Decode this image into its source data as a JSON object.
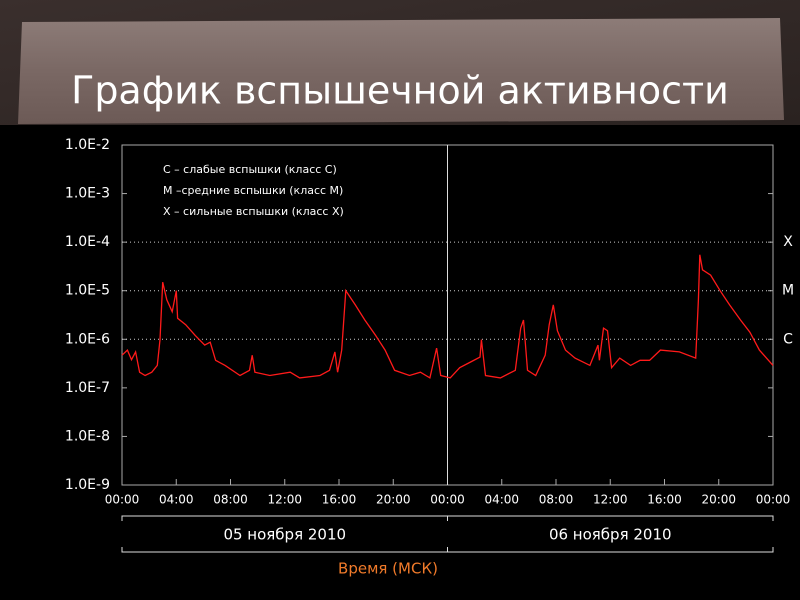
{
  "chart_data": {
    "type": "line",
    "title": "График вспышечной активности",
    "log_y": true,
    "color": "#ff1a1a",
    "ylim": [
      1e-09,
      0.01
    ],
    "yticks": [
      {
        "value": 0.01,
        "label": "1.0E-2"
      },
      {
        "value": 0.001,
        "label": "1.0E-3"
      },
      {
        "value": 0.0001,
        "label": "1.0E-4"
      },
      {
        "value": 1e-05,
        "label": "1.0E-5"
      },
      {
        "value": 1e-06,
        "label": "1.0E-6"
      },
      {
        "value": 1e-07,
        "label": "1.0E-7"
      },
      {
        "value": 1e-08,
        "label": "1.0E-8"
      },
      {
        "value": 1e-09,
        "label": "1.0E-9"
      }
    ],
    "xlim": [
      0,
      48
    ],
    "xticks": [
      {
        "value": 0,
        "label": "00:00"
      },
      {
        "value": 4,
        "label": "04:00"
      },
      {
        "value": 8,
        "label": "08:00"
      },
      {
        "value": 12,
        "label": "12:00"
      },
      {
        "value": 16,
        "label": "16:00"
      },
      {
        "value": 20,
        "label": "20:00"
      },
      {
        "value": 24,
        "label": "00:00"
      },
      {
        "value": 28,
        "label": "04:00"
      },
      {
        "value": 32,
        "label": "08:00"
      },
      {
        "value": 36,
        "label": "12:00"
      },
      {
        "value": 40,
        "label": "16:00"
      },
      {
        "value": 44,
        "label": "20:00"
      },
      {
        "value": 48,
        "label": "00:00"
      }
    ],
    "class_levels": [
      {
        "value": 0.0001,
        "label": "X"
      },
      {
        "value": 1e-05,
        "label": "M"
      },
      {
        "value": 1e-06,
        "label": "C"
      }
    ],
    "legend_text": [
      "C – слабые вспышки (класс C)",
      "M –средние вспышки (класс M)",
      "X – сильные вспышки (класс X)"
    ],
    "days": [
      {
        "label": "05 ноября 2010",
        "range": [
          0,
          24
        ]
      },
      {
        "label": "06 ноября 2010",
        "range": [
          24,
          48
        ]
      }
    ],
    "x_label": "Время (МСК)",
    "x": [
      0,
      0.4,
      0.7,
      1.0,
      1.3,
      1.7,
      2.2,
      2.6,
      2.8,
      3.0,
      3.3,
      3.7,
      4.0,
      4.1,
      4.7,
      5.4,
      6.1,
      6.5,
      6.9,
      7.6,
      8.7,
      9.4,
      9.6,
      9.8,
      10.9,
      12.4,
      13.1,
      14.6,
      15.3,
      15.7,
      15.9,
      16.2,
      16.5,
      17.2,
      17.9,
      18.7,
      19.4,
      20.1,
      21.2,
      22.0,
      22.7,
      23.2,
      23.5,
      24.2,
      24.9,
      25.7,
      26.4,
      26.5,
      26.8,
      27.9,
      29.0,
      29.4,
      29.6,
      29.9,
      30.5,
      31.2,
      31.5,
      31.8,
      32.1,
      32.7,
      33.4,
      34.5,
      35.1,
      35.2,
      35.5,
      35.8,
      36.1,
      36.7,
      37.5,
      38.2,
      38.9,
      39.7,
      41.1,
      42.3,
      42.5,
      42.6,
      42.8,
      43.4,
      44.1,
      44.8,
      45.6,
      46.3,
      47.0,
      48.0
    ],
    "values": [
      4.7e-07,
      6e-07,
      3.8e-07,
      5.5e-07,
      2.1e-07,
      1.8e-07,
      2.1e-07,
      2.9e-07,
      9.8e-07,
      1.5e-05,
      6.5e-06,
      3.7e-06,
      1e-05,
      2.7e-06,
      2e-06,
      1.2e-06,
      7.6e-07,
      8.7e-07,
      3.7e-07,
      2.9e-07,
      1.8e-07,
      2.3e-07,
      4.7e-07,
      2.1e-07,
      1.8e-07,
      2.1e-07,
      1.6e-07,
      1.8e-07,
      2.3e-07,
      5.5e-07,
      2.1e-07,
      6e-07,
      1e-05,
      5.1e-06,
      2.5e-06,
      1.2e-06,
      6e-07,
      2.3e-07,
      1.8e-07,
      2.1e-07,
      1.6e-07,
      6.6e-07,
      1.8e-07,
      1.6e-07,
      2.6e-07,
      3.4e-07,
      4.3e-07,
      9.8e-07,
      1.8e-07,
      1.6e-07,
      2.3e-07,
      1.7e-06,
      2.5e-06,
      2.3e-07,
      1.8e-07,
      4.7e-07,
      2e-06,
      5.1e-06,
      1.5e-06,
      6e-07,
      4.1e-07,
      2.9e-07,
      7.6e-07,
      3.7e-07,
      1.7e-06,
      1.5e-06,
      2.6e-07,
      4.1e-07,
      2.9e-07,
      3.7e-07,
      3.7e-07,
      6e-07,
      5.5e-07,
      4.1e-07,
      6.5e-06,
      5.5e-05,
      2.7e-05,
      2.1e-05,
      1e-05,
      5.1e-06,
      2.5e-06,
      1.4e-06,
      6e-07,
      2.9e-07
    ]
  }
}
